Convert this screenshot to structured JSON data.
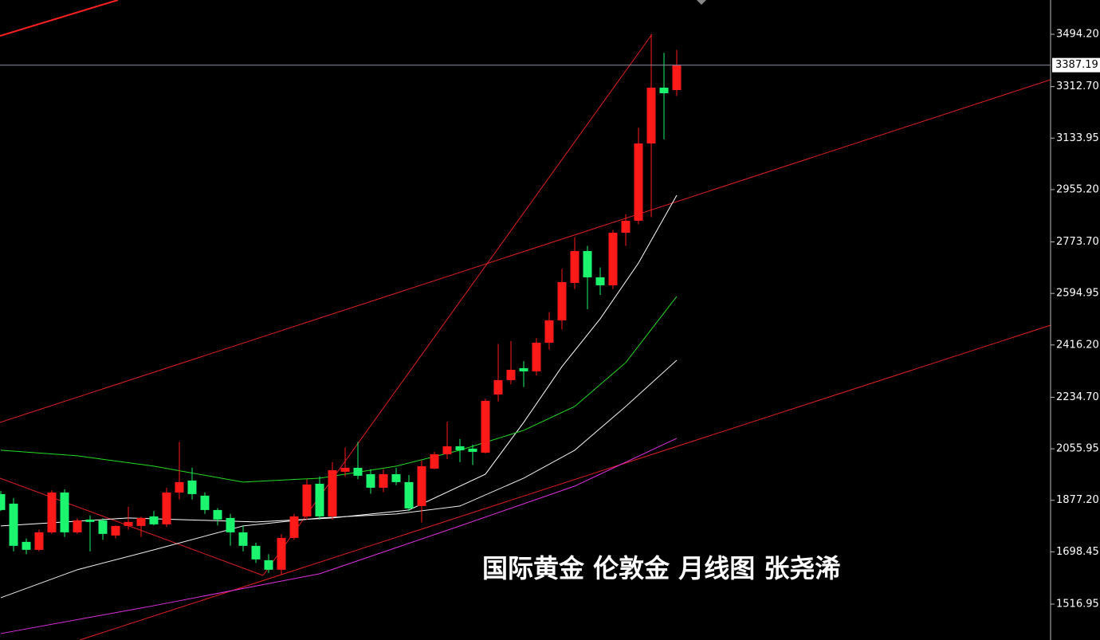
{
  "chart_data": {
    "type": "candlestick",
    "annotation": "国际黄金 伦敦金 月线图 张尧浠",
    "ylim": [
      1392.5,
      3613.1
    ],
    "yticks": [
      {
        "value": 3494.2,
        "label": "3494.20"
      },
      {
        "value": 3312.7,
        "label": "3312.70"
      },
      {
        "value": 3133.95,
        "label": "3133.95"
      },
      {
        "value": 2955.2,
        "label": "2955.20"
      },
      {
        "value": 2773.7,
        "label": "2773.70"
      },
      {
        "value": 2594.95,
        "label": "2594.95"
      },
      {
        "value": 2416.2,
        "label": "2416.20"
      },
      {
        "value": 2234.7,
        "label": "2234.70"
      },
      {
        "value": 2055.95,
        "label": "2055.95"
      },
      {
        "value": 1877.2,
        "label": "1877.20"
      },
      {
        "value": 1698.45,
        "label": "1698.45"
      },
      {
        "value": 1516.95,
        "label": "1516.95"
      }
    ],
    "last_price": 3387.19,
    "up_color": "#ff1a1a",
    "down_color": "#1cf46e",
    "open": [
      1898.8,
      1865.6,
      1733.0,
      1705.4,
      1766.1,
      1904.3,
      1766.1,
      1810.4,
      1807.6,
      1755.1,
      1788.3,
      1788.3,
      1821.4,
      1793.8,
      1904.3,
      1945.8,
      1893.3,
      1843.5,
      1815.9,
      1766.1,
      1719.2,
      1669.4,
      1636.3,
      1746.8,
      1821.4,
      1934.7,
      1821.4,
      1976.3,
      1990.0,
      1967.9,
      1920.9,
      1967.9,
      1940.3,
      1857.3,
      1987.3,
      2037.0,
      2064.7,
      2056.4,
      2042.6,
      2244.4,
      2294.2,
      2335.7,
      2324.6,
      2424.1,
      2501.6,
      2631.5,
      2742.1,
      2650.9,
      2623.2,
      2805.7,
      2847.2,
      3115.4,
      3308.9,
      3300.6
    ],
    "high": [
      1910,
      1885,
      1745,
      1775,
      1912,
      1915,
      1815,
      1825,
      1815,
      1790,
      1855,
      1820,
      1840,
      1920,
      2080,
      1990,
      1905,
      1850,
      1830,
      1790,
      1730,
      1690,
      1760,
      1830,
      1950,
      1960,
      2010,
      2060,
      2080,
      1985,
      1985,
      1990,
      1965,
      2015,
      2045,
      2150,
      2090,
      2070,
      2230,
      2420,
      2430,
      2360,
      2440,
      2530,
      2680,
      2790,
      2760,
      2685,
      2815,
      2870,
      3170,
      3494,
      3430,
      3440
    ],
    "low": [
      1840,
      1700,
      1690,
      1700,
      1760,
      1750,
      1760,
      1700,
      1740,
      1745,
      1775,
      1750,
      1790,
      1785,
      1880,
      1880,
      1830,
      1790,
      1720,
      1700,
      1660,
      1625,
      1620,
      1740,
      1810,
      1810,
      1810,
      1960,
      1950,
      1900,
      1905,
      1930,
      1840,
      1800,
      1985,
      2020,
      2010,
      2000,
      2040,
      2220,
      2280,
      2270,
      2310,
      2400,
      2470,
      2610,
      2540,
      2590,
      2610,
      2760,
      2835,
      2860,
      3130,
      3280
    ],
    "close": [
      1843.5,
      1719.2,
      1705.4,
      1766.1,
      1904.3,
      1766.1,
      1807.6,
      1802.1,
      1760.6,
      1788.3,
      1802.1,
      1815.9,
      1793.8,
      1904.3,
      1940.3,
      1898.8,
      1843.5,
      1810.4,
      1766.1,
      1719.2,
      1672.2,
      1636.3,
      1746.8,
      1821.4,
      1932.0,
      1821.4,
      1981.8,
      1990.0,
      1962.4,
      1920.9,
      1967.9,
      1940.3,
      1849.0,
      1995.6,
      2037.0,
      2064.7,
      2050.9,
      2045.3,
      2222.3,
      2294.2,
      2330.1,
      2324.6,
      2424.1,
      2501.6,
      2634.3,
      2742.1,
      2650.9,
      2623.2,
      2805.7,
      2847.2,
      3115.4,
      3308.9,
      3289.6,
      3387.19
    ],
    "lines": [
      {
        "color": "#ffffff",
        "x": [
          0,
          10,
          20,
          26,
          32,
          38,
          41,
          44,
          47,
          50,
          53
        ],
        "values": [
          1788.3,
          1815.9,
          1802.1,
          1815.9,
          1843.5,
          1967.9,
          2147.6,
          2341.2,
          2507.1,
          2700.6,
          2935.7
        ]
      },
      {
        "color": "#22dd22",
        "x": [
          0,
          6,
          12,
          19,
          25,
          31,
          36,
          41,
          45,
          49,
          53
        ],
        "values": [
          2050.9,
          2031.6,
          1995.6,
          1940.3,
          1954.0,
          1995.6,
          2050.9,
          2119.9,
          2202.9,
          2355.0,
          2584.5
        ]
      },
      {
        "color": "#f0f0f0",
        "x": [
          0,
          6,
          12,
          19,
          25,
          31,
          36,
          41,
          45,
          49,
          53
        ],
        "values": [
          1539.3,
          1636.3,
          1705.4,
          1788.3,
          1815.9,
          1829.7,
          1857.3,
          1954.0,
          2050.9,
          2202.9,
          2363.3
        ]
      },
      {
        "color": "#e030e0",
        "x": [
          0,
          12,
          25,
          36,
          45,
          53
        ],
        "values": [
          1414.8,
          1511.6,
          1622.4,
          1788.3,
          1926.5,
          2092.3
        ]
      }
    ]
  }
}
